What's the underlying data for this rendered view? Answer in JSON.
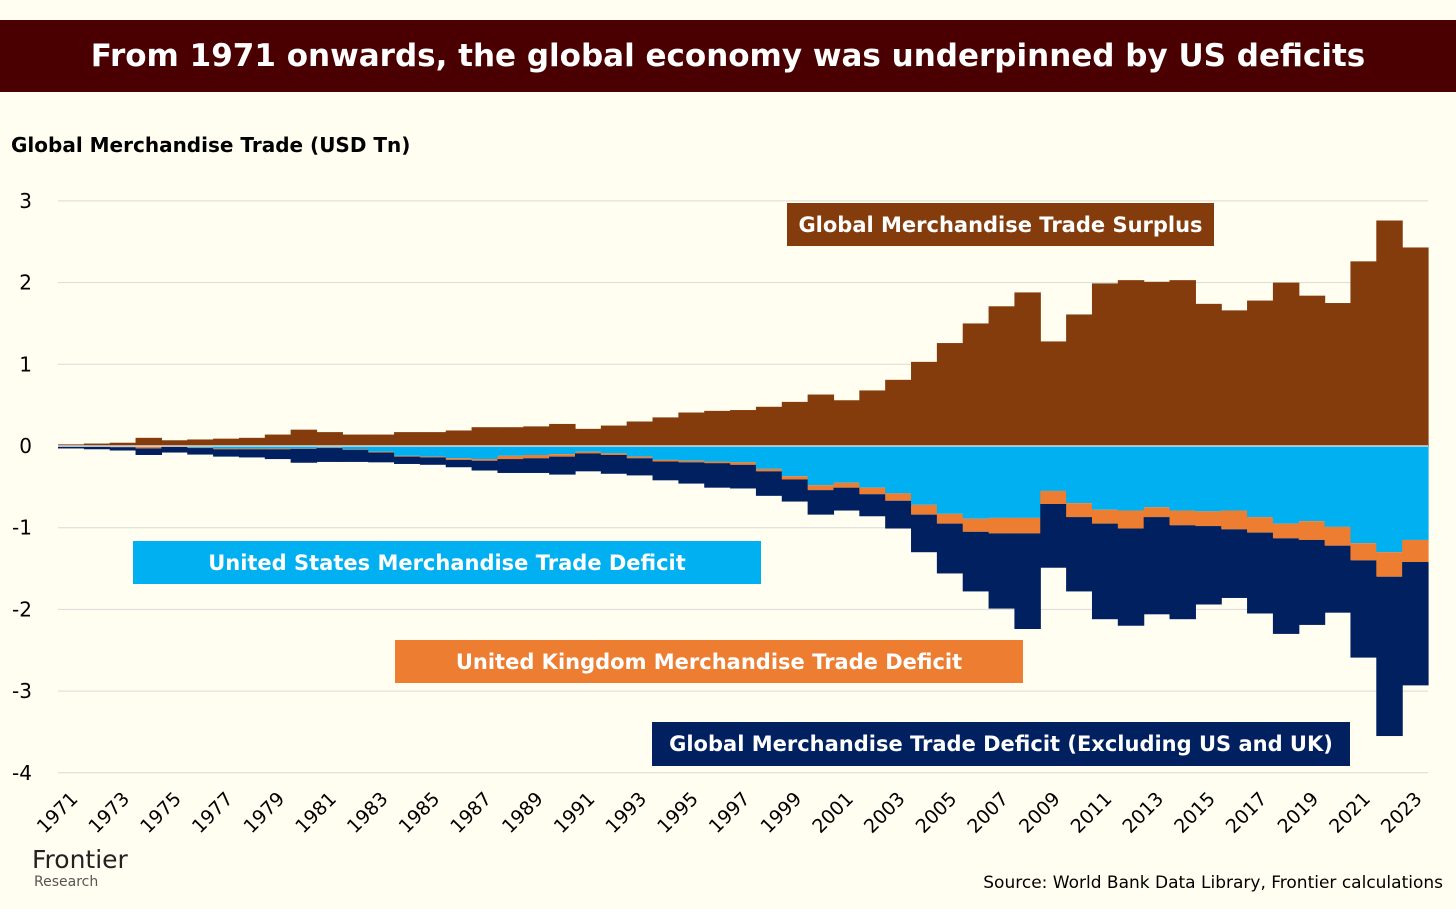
{
  "header": {
    "title": "From 1971 onwards, the global economy was underpinned by US deficits"
  },
  "footer": {
    "logo": "Frontier",
    "logo_sub": "Research",
    "source": "Source: World Bank Data Library, Frontier calculations"
  },
  "chart_data": {
    "type": "bar",
    "stacked": true,
    "title": "From 1971 onwards, the global economy was underpinned by US deficits",
    "ylabel": "Global Merchandise Trade (USD Tn)",
    "xlabel": "",
    "ylim": [
      -4,
      3
    ],
    "yticks": [
      3,
      2,
      1,
      0,
      -1,
      -2,
      -3,
      -4
    ],
    "grid": true,
    "x": [
      1971,
      1972,
      1973,
      1974,
      1975,
      1976,
      1977,
      1978,
      1979,
      1980,
      1981,
      1982,
      1983,
      1984,
      1985,
      1986,
      1987,
      1988,
      1989,
      1990,
      1991,
      1992,
      1993,
      1994,
      1995,
      1996,
      1997,
      1998,
      1999,
      2000,
      2001,
      2002,
      2003,
      2004,
      2005,
      2006,
      2007,
      2008,
      2009,
      2010,
      2011,
      2012,
      2013,
      2014,
      2015,
      2016,
      2017,
      2018,
      2019,
      2020,
      2021,
      2022,
      2023
    ],
    "xtick_labels": [
      "1971",
      "1973",
      "1975",
      "1977",
      "1979",
      "1981",
      "1983",
      "1985",
      "1987",
      "1989",
      "1991",
      "1993",
      "1995",
      "1997",
      "1999",
      "2001",
      "2003",
      "2005",
      "2007",
      "2009",
      "2011",
      "2013",
      "2015",
      "2017",
      "2019",
      "2021",
      "2023"
    ],
    "series": [
      {
        "name": "Global Merchandise Trade Surplus",
        "color": "#843c0c",
        "values": [
          0.02,
          0.03,
          0.04,
          0.1,
          0.07,
          0.08,
          0.09,
          0.1,
          0.14,
          0.2,
          0.17,
          0.14,
          0.14,
          0.17,
          0.17,
          0.19,
          0.23,
          0.23,
          0.24,
          0.27,
          0.21,
          0.25,
          0.3,
          0.35,
          0.41,
          0.43,
          0.44,
          0.48,
          0.54,
          0.63,
          0.56,
          0.68,
          0.81,
          1.03,
          1.26,
          1.5,
          1.71,
          1.88,
          1.28,
          1.61,
          1.99,
          2.03,
          2.01,
          2.03,
          1.74,
          1.66,
          1.78,
          2.0,
          1.84,
          1.75,
          2.26,
          2.76,
          2.43
        ]
      },
      {
        "name": "United States Merchandise Trade Deficit",
        "color": "#00b0f0",
        "values": [
          -0.01,
          -0.01,
          -0.01,
          -0.01,
          -0.005,
          -0.02,
          -0.03,
          -0.03,
          -0.03,
          -0.03,
          -0.02,
          -0.04,
          -0.07,
          -0.12,
          -0.13,
          -0.15,
          -0.16,
          -0.12,
          -0.11,
          -0.1,
          -0.07,
          -0.09,
          -0.13,
          -0.17,
          -0.18,
          -0.19,
          -0.2,
          -0.28,
          -0.37,
          -0.48,
          -0.45,
          -0.51,
          -0.58,
          -0.72,
          -0.83,
          -0.89,
          -0.88,
          -0.88,
          -0.55,
          -0.7,
          -0.78,
          -0.79,
          -0.75,
          -0.79,
          -0.8,
          -0.79,
          -0.87,
          -0.95,
          -0.92,
          -0.99,
          -1.19,
          -1.3,
          -1.15
        ]
      },
      {
        "name": "United Kingdom Merchandise Trade Deficit",
        "color": "#ed7d31",
        "values": [
          0,
          0,
          -0.005,
          -0.02,
          -0.005,
          -0.005,
          -0.01,
          -0.01,
          -0.01,
          -0.005,
          -0.005,
          -0.005,
          -0.01,
          -0.01,
          -0.01,
          -0.02,
          -0.02,
          -0.04,
          -0.04,
          -0.03,
          -0.02,
          -0.02,
          -0.02,
          -0.02,
          -0.02,
          -0.02,
          -0.03,
          -0.03,
          -0.04,
          -0.06,
          -0.06,
          -0.08,
          -0.09,
          -0.12,
          -0.12,
          -0.16,
          -0.19,
          -0.19,
          -0.16,
          -0.17,
          -0.17,
          -0.22,
          -0.12,
          -0.18,
          -0.18,
          -0.23,
          -0.19,
          -0.18,
          -0.23,
          -0.23,
          -0.21,
          -0.3,
          -0.27
        ]
      },
      {
        "name": "Global Merchandise Trade Deficit (Excluding US and UK)",
        "color": "#002060",
        "values": [
          -0.02,
          -0.03,
          -0.04,
          -0.08,
          -0.07,
          -0.08,
          -0.09,
          -0.1,
          -0.12,
          -0.17,
          -0.17,
          -0.15,
          -0.12,
          -0.09,
          -0.09,
          -0.09,
          -0.12,
          -0.17,
          -0.18,
          -0.22,
          -0.22,
          -0.23,
          -0.21,
          -0.23,
          -0.26,
          -0.3,
          -0.29,
          -0.3,
          -0.27,
          -0.3,
          -0.28,
          -0.27,
          -0.34,
          -0.46,
          -0.61,
          -0.73,
          -0.92,
          -1.17,
          -0.78,
          -0.91,
          -1.17,
          -1.19,
          -1.19,
          -1.15,
          -0.96,
          -0.84,
          -0.99,
          -1.17,
          -1.04,
          -0.82,
          -1.19,
          -1.95,
          -1.51
        ]
      }
    ],
    "legend": [
      "Global Merchandise Trade Surplus",
      "United States Merchandise Trade Deficit",
      "United Kingdom Merchandise Trade Deficit",
      "Global Merchandise Trade Deficit (Excluding US and UK)"
    ],
    "legend_placement": "inline labels"
  }
}
